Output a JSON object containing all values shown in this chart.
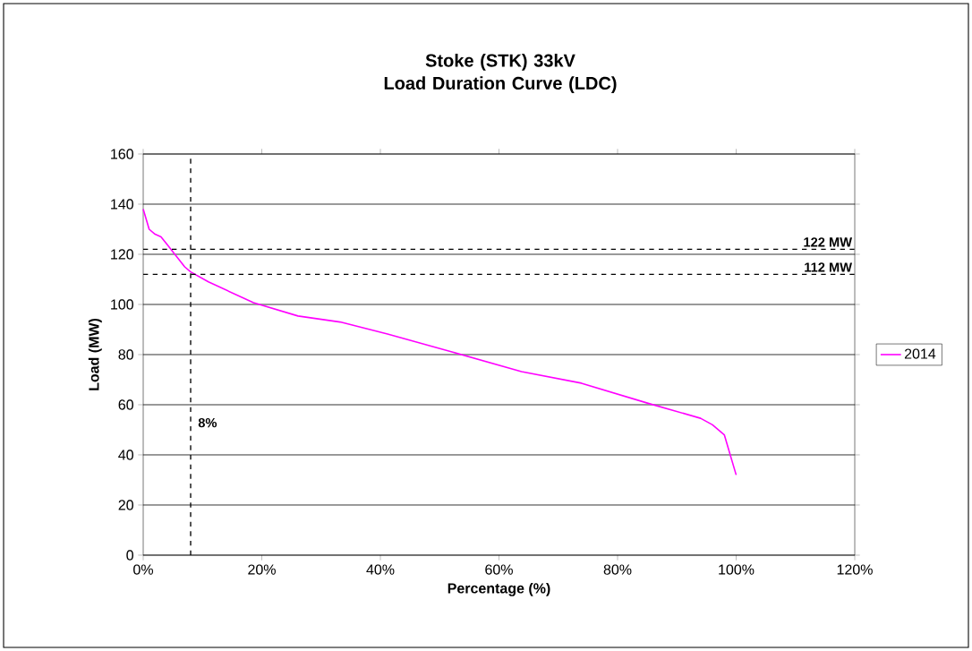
{
  "chart_data": {
    "type": "line",
    "title": "Stoke (STK) 33kV\nLoad Duration Curve (LDC)",
    "xlabel": "Percentage (%)",
    "ylabel": "Load (MW)",
    "x": [
      0,
      1,
      2,
      3,
      4,
      5,
      6,
      7,
      8,
      11,
      18.6,
      26.1,
      33.2,
      41.2,
      52.2,
      63.8,
      73.9,
      85.4,
      94,
      96,
      98,
      100
    ],
    "series": [
      {
        "name": "2014",
        "color": "#ff00ff",
        "values": [
          138,
          130,
          128,
          127,
          124,
          121,
          118,
          115,
          113,
          109,
          100.7,
          95.4,
          93,
          88.2,
          81,
          73.2,
          68.6,
          60.4,
          54.6,
          52,
          48,
          32
        ]
      }
    ],
    "xlim": [
      0,
      120
    ],
    "ylim": [
      0,
      160
    ],
    "xticks": [
      {
        "value": 0,
        "label": "0%"
      },
      {
        "value": 20,
        "label": "20%"
      },
      {
        "value": 40,
        "label": "40%"
      },
      {
        "value": 60,
        "label": "60%"
      },
      {
        "value": 80,
        "label": "80%"
      },
      {
        "value": 100,
        "label": "100%"
      },
      {
        "value": 120,
        "label": "120%"
      }
    ],
    "yticks": [
      0,
      20,
      40,
      60,
      80,
      100,
      120,
      140,
      160
    ],
    "ref_lines": [
      {
        "axis": "y",
        "value": 122,
        "label": "122 MW",
        "color": "#000000",
        "line_style": "dashed"
      },
      {
        "axis": "y",
        "value": 112,
        "label": "112 MW",
        "color": "#000000",
        "line_style": "dashed"
      },
      {
        "axis": "x",
        "value": 8,
        "label": "8%",
        "color": "#000000",
        "line_style": "dashed"
      }
    ],
    "grid": "y",
    "legend": "right",
    "marker": "none",
    "line_style": "solid"
  }
}
